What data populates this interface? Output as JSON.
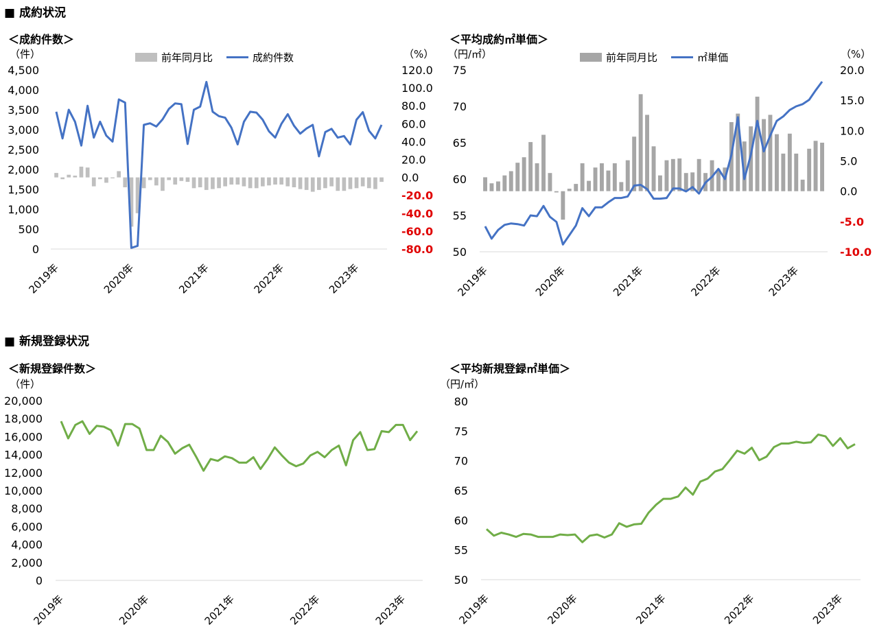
{
  "sections": {
    "contracts": "■ 成約状況",
    "listings": "■ 新規登録状況"
  },
  "colors": {
    "bar_light": "#bfbfbf",
    "bar_dark": "#a6a6a6",
    "line_blue": "#4472c4",
    "line_green": "#70ad47",
    "negative_red": "#e00000",
    "axis": "#d9d9d9"
  },
  "chart_data": [
    {
      "id": "c1",
      "type": "bar+line",
      "title": "＜成約件数＞",
      "left_unit": "（件）",
      "right_unit": "（%）",
      "legend_bar": "前年同月比",
      "legend_line": "成約件数",
      "left_ticks": [
        "4,500",
        "4,000",
        "3,500",
        "3,000",
        "2,500",
        "2,000",
        "1,500",
        "1,000",
        "500",
        "0"
      ],
      "right_ticks": [
        "120.0",
        "100.0",
        "80.0",
        "60.0",
        "40.0",
        "20.0",
        "0.0",
        "-20.0",
        "-40.0",
        "-60.0",
        "-80.0"
      ],
      "ylim_left": [
        0,
        4500
      ],
      "ylim_right": [
        -80,
        120
      ],
      "x_tick_labels": [
        "2019年",
        "2020年",
        "2021年",
        "2022年",
        "2023年"
      ],
      "x_tick_index": [
        0,
        12,
        24,
        36,
        48
      ],
      "line_values": [
        3450,
        2780,
        3500,
        3200,
        2600,
        3600,
        2800,
        3200,
        2850,
        2700,
        3760,
        3680,
        30,
        80,
        3120,
        3160,
        3080,
        3260,
        3520,
        3660,
        3640,
        2640,
        3500,
        3580,
        4200,
        3450,
        3340,
        3300,
        3050,
        2630,
        3200,
        3450,
        3430,
        3250,
        2960,
        2800,
        3150,
        3390,
        3100,
        2900,
        3030,
        3120,
        2330,
        2940,
        3020,
        2800,
        2840,
        2630,
        3250,
        3440,
        2970,
        2780,
        3120
      ],
      "bar_values": [
        5,
        -2,
        3,
        2,
        12,
        11,
        -10,
        -2,
        -6,
        -1,
        7,
        -11,
        -55,
        -40,
        -12,
        -3,
        -9,
        -15,
        -3,
        -8,
        -4,
        -5,
        -12,
        -11,
        -14,
        -13,
        -12,
        -10,
        -8,
        -8,
        -10,
        -12,
        -12,
        -10,
        -9,
        -8,
        -8,
        -10,
        -11,
        -13,
        -14,
        -16,
        -14,
        -12,
        -10,
        -15,
        -15,
        -13,
        -12,
        -10,
        -12,
        -13,
        -5
      ],
      "bar_overrides_note": ""
    },
    {
      "id": "c2",
      "type": "bar+line",
      "title": "＜平均成約㎡単価＞",
      "left_unit": "（円/㎡）",
      "right_unit": "（%）",
      "legend_bar": "前年同月比",
      "legend_line": "㎡単価",
      "left_ticks": [
        "75",
        "70",
        "65",
        "60",
        "55",
        "50"
      ],
      "right_ticks": [
        "20.0",
        "15.0",
        "10.0",
        "5.0",
        "0.0",
        "-5.0",
        "-10.0"
      ],
      "ylim_left": [
        50,
        75
      ],
      "ylim_right": [
        -10,
        20
      ],
      "x_tick_labels": [
        "2019年",
        "2020年",
        "2021年",
        "2022年",
        "2023年"
      ],
      "x_tick_index": [
        0,
        12,
        24,
        36,
        48
      ],
      "line_values": [
        53.5,
        51.8,
        53.0,
        53.7,
        53.9,
        53.8,
        53.6,
        55.0,
        54.9,
        56.3,
        54.8,
        54.1,
        51.0,
        52.3,
        53.6,
        56.0,
        54.9,
        56.1,
        56.1,
        56.8,
        57.4,
        57.4,
        57.6,
        59.1,
        59.2,
        58.6,
        57.3,
        57.3,
        57.4,
        58.7,
        58.7,
        58.3,
        58.9,
        58.0,
        59.5,
        60.3,
        61.4,
        60.0,
        63.3,
        68.5,
        60.0,
        63.3,
        68.0,
        63.8,
        66.0,
        68.0,
        68.6,
        69.5,
        70.0,
        70.3,
        70.9,
        72.2,
        73.4
      ],
      "bar_values": [
        2.3,
        1.3,
        1.6,
        2.6,
        3.3,
        4.7,
        5.6,
        8.1,
        4.6,
        9.3,
        3.0,
        -0.2,
        -4.7,
        0.4,
        1.2,
        4.6,
        1.7,
        3.9,
        4.6,
        3.4,
        4.6,
        1.5,
        5.1,
        9.0,
        16.0,
        12.6,
        7.4,
        2.6,
        5.1,
        5.3,
        5.4,
        3.0,
        3.1,
        5.3,
        3.0,
        5.1,
        3.6,
        3.9,
        11.4,
        12.8,
        8.2,
        10.7,
        15.6,
        11.9,
        12.6,
        9.4,
        6.2,
        9.5,
        6.2,
        1.9,
        7.0,
        8.3,
        8.0
      ]
    },
    {
      "id": "c3",
      "type": "line",
      "title": "＜新規登録件数＞",
      "left_unit": "（件）",
      "left_ticks": [
        "20,000",
        "18,000",
        "16,000",
        "14,000",
        "12,000",
        "10,000",
        "8,000",
        "6,000",
        "4,000",
        "2,000",
        "0"
      ],
      "ylim": [
        0,
        20000
      ],
      "x_tick_labels": [
        "2019年",
        "2020年",
        "2021年",
        "2022年",
        "2023年"
      ],
      "x_tick_index": [
        0,
        12,
        24,
        36,
        48
      ],
      "values": [
        17700,
        15800,
        17300,
        17700,
        16300,
        17200,
        17100,
        16700,
        15000,
        17400,
        17400,
        16900,
        14500,
        14500,
        16100,
        15400,
        14100,
        14700,
        15100,
        13700,
        12200,
        13500,
        13300,
        13800,
        13600,
        13100,
        13100,
        13700,
        12400,
        13500,
        14800,
        13900,
        13100,
        12700,
        13000,
        13900,
        14300,
        13700,
        14500,
        15000,
        12800,
        15600,
        16500,
        14500,
        14600,
        16600,
        16500,
        17300,
        17300,
        15600,
        16600
      ]
    },
    {
      "id": "c4",
      "type": "line",
      "title": "＜平均新規登録㎡単価＞",
      "left_unit": "（円/㎡）",
      "left_ticks": [
        "80",
        "75",
        "70",
        "65",
        "60",
        "55",
        "50"
      ],
      "ylim": [
        50,
        80
      ],
      "x_tick_labels": [
        "2019年",
        "2020年",
        "2021年",
        "2022年",
        "2023年"
      ],
      "x_tick_index": [
        0,
        12,
        24,
        36,
        48
      ],
      "values": [
        58.5,
        57.4,
        57.9,
        57.6,
        57.2,
        57.7,
        57.6,
        57.2,
        57.2,
        57.2,
        57.6,
        57.5,
        57.6,
        56.3,
        57.4,
        57.6,
        57.1,
        57.6,
        59.5,
        58.9,
        59.3,
        59.4,
        61.3,
        62.6,
        63.6,
        63.6,
        64.0,
        65.5,
        64.3,
        66.5,
        67.0,
        68.2,
        68.6,
        70.1,
        71.7,
        71.2,
        72.2,
        70.1,
        70.7,
        72.3,
        72.9,
        72.9,
        73.2,
        73.0,
        73.1,
        74.4,
        74.1,
        72.5,
        73.8,
        72.1,
        72.8
      ]
    }
  ]
}
